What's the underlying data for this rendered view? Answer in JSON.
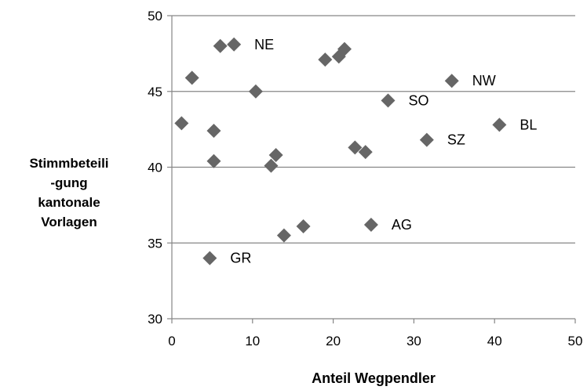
{
  "chart_data": {
    "type": "scatter",
    "title": "",
    "xlabel": "Anteil Wegpendler",
    "ylabel": "Stimmbeteili\n-gung\nkantonale\nVorlagen",
    "xlim": [
      0,
      50
    ],
    "ylim": [
      30,
      50
    ],
    "xticks": [
      0,
      10,
      20,
      30,
      40,
      50
    ],
    "yticks": [
      30,
      35,
      40,
      45,
      50
    ],
    "grid": "horizontal",
    "marker": "diamond",
    "marker_color": "#666666",
    "points": [
      {
        "x": 1.2,
        "y": 42.9
      },
      {
        "x": 2.5,
        "y": 45.9
      },
      {
        "x": 4.7,
        "y": 34.0,
        "label": "GR"
      },
      {
        "x": 5.2,
        "y": 40.4
      },
      {
        "x": 5.2,
        "y": 42.4
      },
      {
        "x": 6.0,
        "y": 48.0
      },
      {
        "x": 7.7,
        "y": 48.1,
        "label": "NE"
      },
      {
        "x": 10.4,
        "y": 45.0
      },
      {
        "x": 12.3,
        "y": 40.1
      },
      {
        "x": 12.9,
        "y": 40.8
      },
      {
        "x": 13.9,
        "y": 35.5
      },
      {
        "x": 16.3,
        "y": 36.1
      },
      {
        "x": 19.0,
        "y": 47.1
      },
      {
        "x": 20.7,
        "y": 47.3
      },
      {
        "x": 21.4,
        "y": 47.8
      },
      {
        "x": 22.7,
        "y": 41.3
      },
      {
        "x": 24.0,
        "y": 41.0
      },
      {
        "x": 24.7,
        "y": 36.2,
        "label": "AG"
      },
      {
        "x": 26.8,
        "y": 44.4,
        "label": "SO"
      },
      {
        "x": 31.6,
        "y": 41.8,
        "label": "SZ"
      },
      {
        "x": 34.7,
        "y": 45.7,
        "label": "NW"
      },
      {
        "x": 40.6,
        "y": 42.8,
        "label": "BL"
      }
    ]
  }
}
